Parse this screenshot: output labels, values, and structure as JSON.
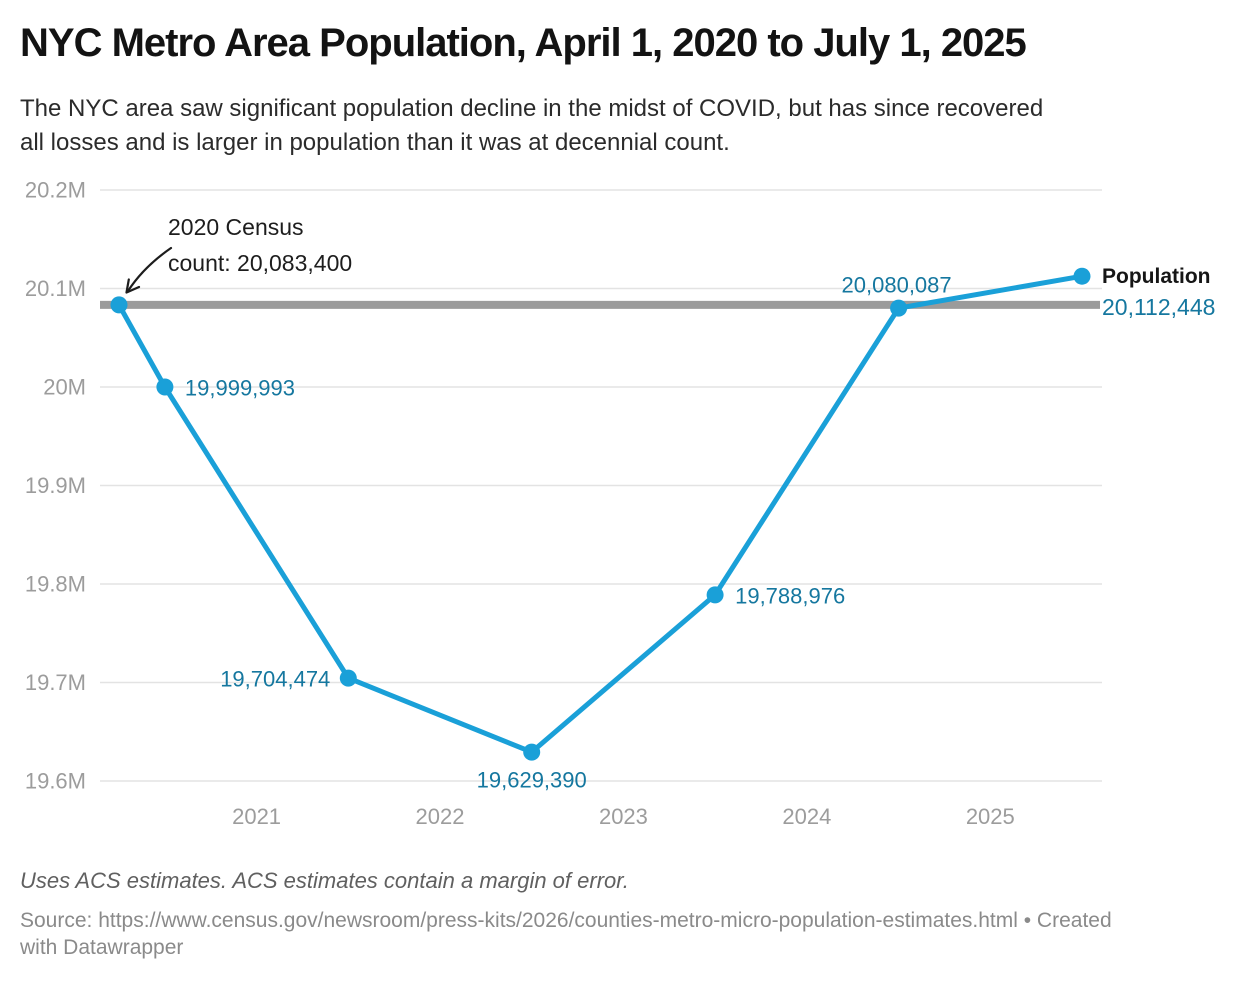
{
  "header": {
    "title": "NYC Metro Area Population, April 1, 2020 to July 1, 2025",
    "subtitle": "The NYC area saw significant population decline in the midst of COVID, but has since recovered\nall losses and is larger in population than it was at decennial count."
  },
  "chart_data": {
    "type": "line",
    "title": "NYC Metro Area Population, April 1, 2020 to July 1, 2025",
    "x_dates": [
      "2020-04-01",
      "2020-07-01",
      "2021-07-01",
      "2022-07-01",
      "2023-07-01",
      "2024-07-01",
      "2025-07-01"
    ],
    "x": [
      2020.25,
      2020.5,
      2021.5,
      2022.5,
      2023.5,
      2024.5,
      2025.5
    ],
    "series": [
      {
        "name": "Population",
        "values": [
          20083400,
          19999993,
          19704474,
          19629390,
          19788976,
          20080087,
          20112448
        ]
      }
    ],
    "point_labels": [
      "",
      "19,999,993",
      "19,704,474",
      "19,629,390",
      "19,788,976",
      "20,080,087",
      ""
    ],
    "label_positions": [
      "none",
      "right",
      "left",
      "below",
      "right",
      "above",
      "legend"
    ],
    "y_ticks": {
      "values": [
        20200000,
        20100000,
        20000000,
        19900000,
        19800000,
        19700000,
        19600000
      ],
      "labels": [
        "20.2M",
        "20.1M",
        "20M",
        "19.9M",
        "19.8M",
        "19.7M",
        "19.6M"
      ]
    },
    "x_ticks": {
      "values": [
        2021,
        2022,
        2023,
        2024,
        2025
      ],
      "labels": [
        "2021",
        "2022",
        "2023",
        "2024",
        "2025"
      ]
    },
    "ylim": [
      19600000,
      20200000
    ],
    "grid": true,
    "legend_position": "right-of-last-point",
    "reference_line": {
      "value": 20083400,
      "label": "2020 Census count: 20,083,400"
    },
    "colors": {
      "line": "#1aa0d8",
      "point": "#1aa0d8",
      "point_label_text": "#15779f",
      "reference_line": "#9b9b9b",
      "grid": "#e3e3e3",
      "axis_text": "#9c9c9c",
      "annotation_text": "#1d1d1d"
    }
  },
  "annotation": {
    "text": "2020 Census\ncount: 20,083,400"
  },
  "legend": {
    "series": "Population",
    "value": "20,112,448"
  },
  "footer": {
    "notes": "Uses ACS estimates. ACS estimates contain a margin of error.",
    "source": "Source: https://www.census.gov/newsroom/press-kits/2026/counties-metro-micro-population-estimates.html • Created\nwith Datawrapper"
  }
}
